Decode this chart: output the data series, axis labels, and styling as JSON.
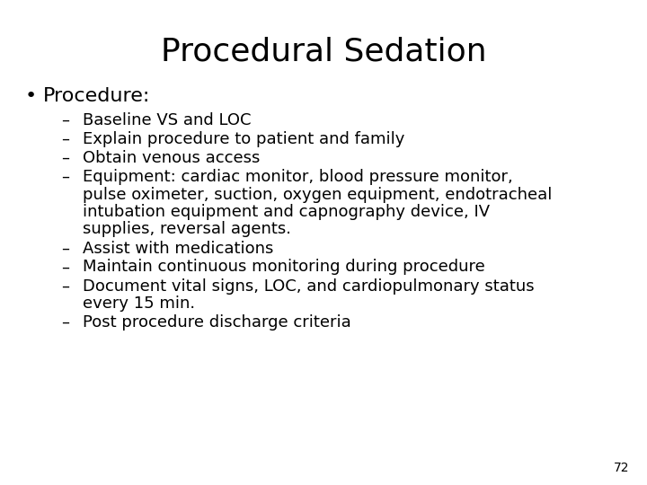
{
  "title": "Procedural Sedation",
  "background_color": "#ffffff",
  "text_color": "#000000",
  "title_fontsize": 26,
  "bullet_fontsize": 16,
  "sub_fontsize": 13,
  "bullet_main": "Procedure:",
  "sub_items": [
    [
      "Baseline VS and LOC"
    ],
    [
      "Explain procedure to patient and family"
    ],
    [
      "Obtain venous access"
    ],
    [
      "Equipment: cardiac monitor, blood pressure monitor,",
      "pulse oximeter, suction, oxygen equipment, endotracheal",
      "intubation equipment and capnography device, IV",
      "supplies, reversal agents."
    ],
    [
      "Assist with medications"
    ],
    [
      "Maintain continuous monitoring during procedure"
    ],
    [
      "Document vital signs, LOC, and cardiopulmonary status",
      "every 15 min."
    ],
    [
      "Post procedure discharge criteria"
    ]
  ],
  "page_number": "72",
  "font_family": "DejaVu Sans"
}
